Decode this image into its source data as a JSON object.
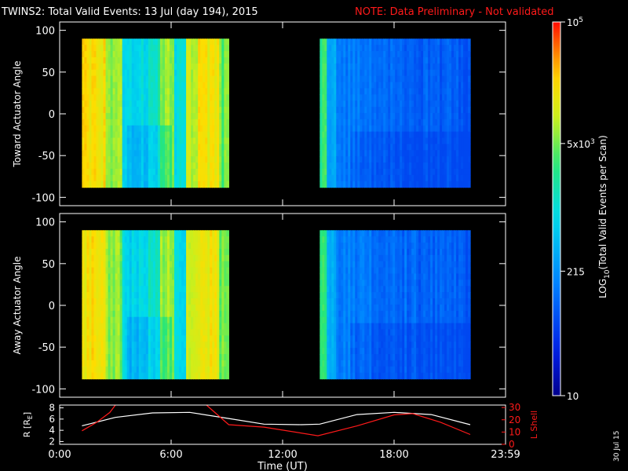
{
  "title": "TWINS2: Total Valid Events: 13 Jul (day 194), 2015",
  "note": "NOTE: Data Preliminary - Not validated",
  "date_stamp": "30 Jul 15",
  "colors": {
    "background": "#000000",
    "axes": "#ffffff",
    "note": "#ff1a1a",
    "l_shell": "#ff1a1a",
    "r_line": "#ffffff"
  },
  "colorbar": {
    "label_log": "LOG",
    "label_sub": "10",
    "label_rest": "(Total Valid Events per Scan)",
    "ticks": [
      {
        "text": "10",
        "value": 10
      },
      {
        "text": "215",
        "value": 215
      },
      {
        "text": "5x10",
        "sup": "3",
        "value": 5000
      },
      {
        "text": "10",
        "sup": "5",
        "value": 100000
      }
    ],
    "scale": "log",
    "range": [
      10,
      100000
    ]
  },
  "chart_data": [
    {
      "type": "heatmap",
      "ylabel": "Toward Actuator Angle",
      "y_ticks": [
        "100",
        "50",
        "0",
        "-50",
        "-100"
      ],
      "y_tick_values": [
        100,
        50,
        0,
        -50,
        -100
      ],
      "ylim": [
        -110,
        110
      ],
      "xlim_hours": [
        0,
        24
      ],
      "data_y_range": [
        -88,
        90
      ],
      "segments": [
        {
          "start_hour": 1.2,
          "end_hour": 9.1,
          "level_range": [
            215,
            30000
          ]
        },
        {
          "start_hour": 14.0,
          "end_hour": 22.1,
          "level_range": [
            60,
            5000
          ]
        }
      ]
    },
    {
      "type": "heatmap",
      "ylabel": "Away Actuator Angle",
      "y_ticks": [
        "100",
        "50",
        "0",
        "-50",
        "-100"
      ],
      "y_tick_values": [
        100,
        50,
        0,
        -50,
        -100
      ],
      "ylim": [
        -110,
        110
      ],
      "xlim_hours": [
        0,
        24
      ],
      "data_y_range": [
        -88,
        90
      ],
      "segments": [
        {
          "start_hour": 1.2,
          "end_hour": 9.1,
          "level_range": [
            215,
            30000
          ]
        },
        {
          "start_hour": 14.0,
          "end_hour": 22.1,
          "level_range": [
            60,
            5000
          ]
        }
      ]
    },
    {
      "type": "line",
      "xlabel": "Time (UT)",
      "x_ticks": [
        "0:00",
        "6:00",
        "12:00",
        "18:00",
        "23:59"
      ],
      "x_tick_hours": [
        0,
        6,
        12,
        18,
        24
      ],
      "left_axis": {
        "label": "R [R",
        "label_sub": "E",
        "label_close": "]",
        "ticks": [
          "2",
          "4",
          "6",
          "8"
        ],
        "tick_values": [
          2,
          4,
          6,
          8
        ],
        "range": [
          1.5,
          8.5
        ]
      },
      "right_axis": {
        "label": "L Shell",
        "ticks": [
          "0",
          "10",
          "20",
          "30"
        ],
        "tick_values": [
          0,
          10,
          20,
          30
        ],
        "range": [
          0,
          32
        ]
      },
      "series": [
        {
          "axis": "left",
          "x": [
            1.2,
            3,
            5,
            7,
            9.1,
            11,
            13,
            14,
            16,
            18,
            20,
            22.1
          ],
          "y": [
            4.8,
            6.3,
            7.1,
            7.2,
            6.1,
            5.1,
            5.0,
            5.1,
            6.8,
            7.2,
            6.8,
            5.0
          ]
        },
        {
          "axis": "right",
          "x": [
            1.2,
            2.0,
            2.7,
            3.0
          ],
          "y": [
            11,
            18,
            26,
            32
          ]
        },
        {
          "axis": "right",
          "x": [
            7.9,
            8.5,
            9.1,
            11,
            13.9,
            16,
            18,
            19,
            20.5,
            22.1
          ],
          "y": [
            32,
            24,
            16,
            14,
            7,
            15,
            24,
            25,
            18,
            8
          ]
        }
      ]
    }
  ]
}
